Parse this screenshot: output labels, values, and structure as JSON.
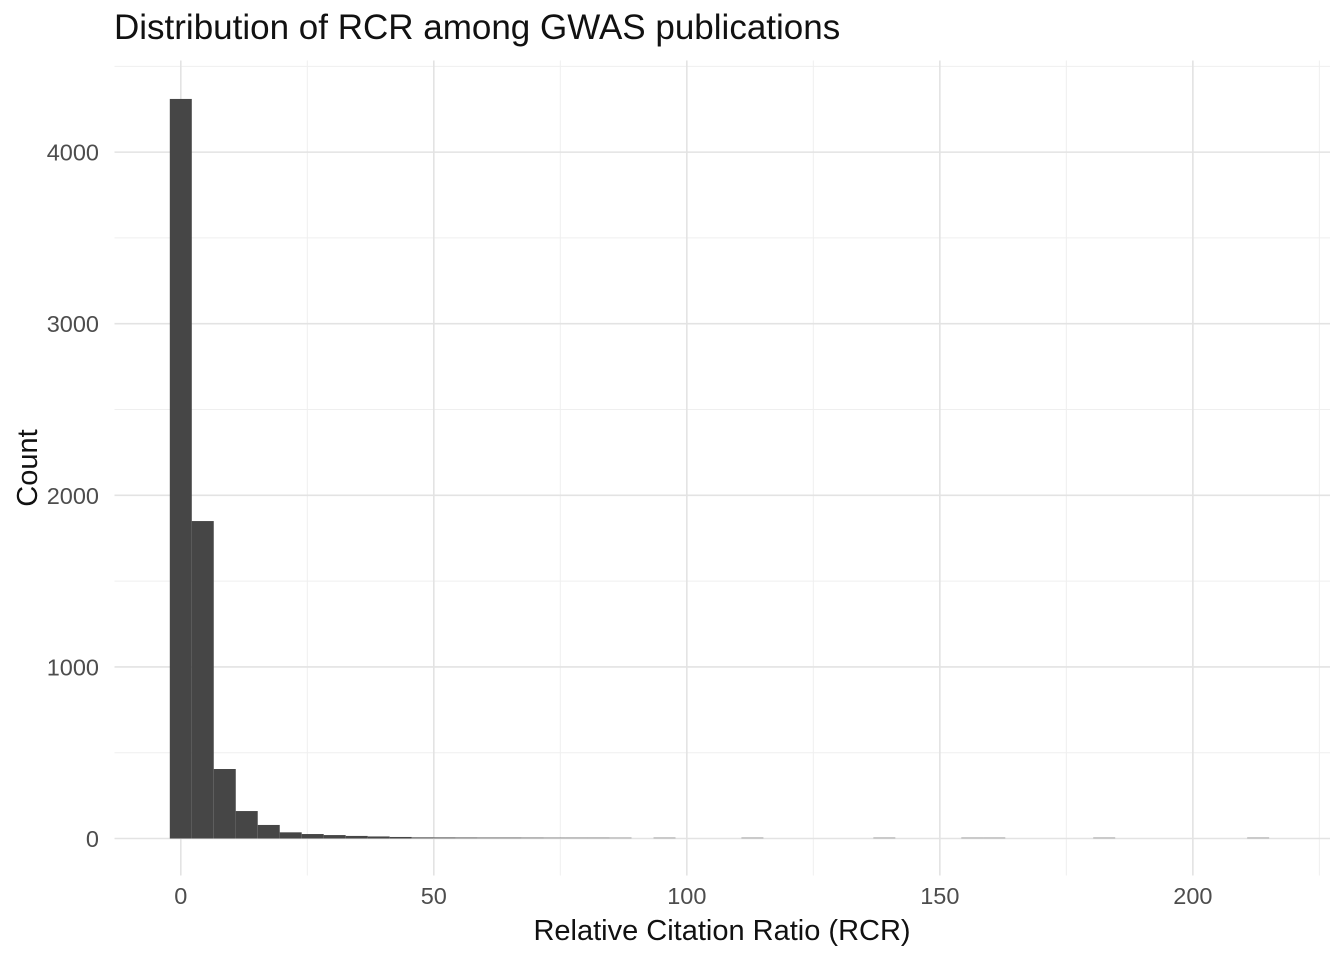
{
  "page": {
    "background": "#ffffff"
  },
  "chart_data": {
    "type": "bar",
    "subtype": "histogram",
    "title": "Distribution of RCR among GWAS publications",
    "xlabel": "Relative Citation Ratio (RCR)",
    "ylabel": "Count",
    "legend": false,
    "grid": true,
    "x_ticks": [
      0,
      50,
      100,
      150,
      200
    ],
    "x_minor_ticks": [
      25,
      75,
      125,
      175,
      225
    ],
    "y_ticks": [
      0,
      1000,
      2000,
      3000,
      4000
    ],
    "y_minor_ticks": [
      500,
      1500,
      2500,
      3500,
      4500
    ],
    "xlim": [
      -13.1,
      227.1
    ],
    "ylim": [
      -215.6,
      4534
    ],
    "bin_width": 4.345,
    "bins": [
      {
        "center": 0,
        "count": 4310
      },
      {
        "center": 4.34,
        "count": 1850
      },
      {
        "center": 8.69,
        "count": 405
      },
      {
        "center": 13.03,
        "count": 160
      },
      {
        "center": 17.38,
        "count": 79
      },
      {
        "center": 21.72,
        "count": 36
      },
      {
        "center": 26.07,
        "count": 26
      },
      {
        "center": 30.41,
        "count": 20
      },
      {
        "center": 34.76,
        "count": 15
      },
      {
        "center": 39.1,
        "count": 12
      },
      {
        "center": 43.45,
        "count": 9
      },
      {
        "center": 47.79,
        "count": 7
      },
      {
        "center": 52.14,
        "count": 6
      },
      {
        "center": 56.48,
        "count": 5
      },
      {
        "center": 60.83,
        "count": 4
      },
      {
        "center": 65.17,
        "count": 4
      },
      {
        "center": 69.52,
        "count": 3
      },
      {
        "center": 73.86,
        "count": 2
      },
      {
        "center": 78.21,
        "count": 2
      },
      {
        "center": 82.55,
        "count": 2
      },
      {
        "center": 86.9,
        "count": 1
      },
      {
        "center": 95.59,
        "count": 1
      },
      {
        "center": 112.96,
        "count": 1
      },
      {
        "center": 139.03,
        "count": 1
      },
      {
        "center": 156.41,
        "count": 1
      },
      {
        "center": 160.76,
        "count": 1
      },
      {
        "center": 182.48,
        "count": 1
      },
      {
        "center": 212.9,
        "count": 1
      }
    ],
    "colors": {
      "bar": "#464646",
      "grid_major": "#e3e3e3",
      "grid_minor": "#efefef",
      "tick_label": "#4d4d4d",
      "text": "#111111",
      "background": "#ffffff"
    }
  }
}
